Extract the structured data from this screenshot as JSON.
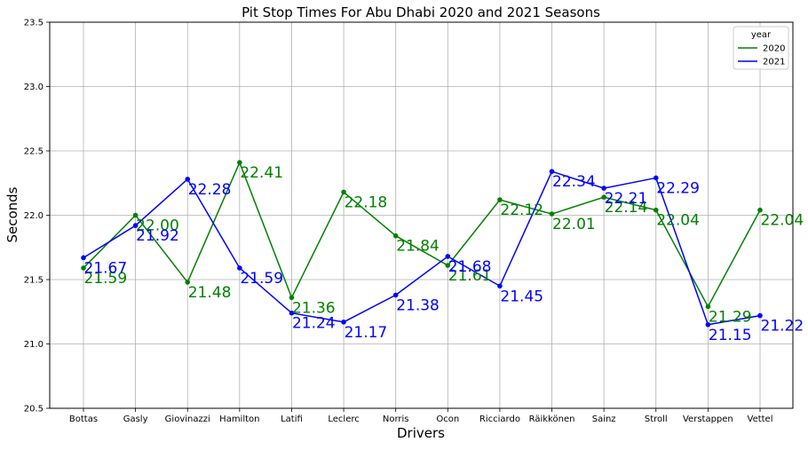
{
  "chart_data": {
    "type": "line",
    "title": "Pit Stop Times For Abu Dhabi 2020 and 2021 Seasons",
    "xlabel": "Drivers",
    "ylabel": "Seconds",
    "categories": [
      "Bottas",
      "Gasly",
      "Giovinazzi",
      "Hamilton",
      "Latifi",
      "Leclerc",
      "Norris",
      "Ocon",
      "Ricciardo",
      "Räikkönen",
      "Sainz",
      "Stroll",
      "Verstappen",
      "Vettel"
    ],
    "ylim": [
      20.5,
      23.5
    ],
    "yticks": [
      "20.5",
      "21.0",
      "21.5",
      "22.0",
      "22.5",
      "23.0",
      "23.5"
    ],
    "grid": true,
    "legend": {
      "title": "year",
      "position": "top-right"
    },
    "series": [
      {
        "name": "2020",
        "color": "#008000",
        "values": [
          21.59,
          22.0,
          21.48,
          22.41,
          21.36,
          22.18,
          21.84,
          21.61,
          22.12,
          22.01,
          22.14,
          22.04,
          21.29,
          22.04
        ],
        "labels": [
          "21.59",
          "22.00",
          "21.48",
          "22.41",
          "21.36",
          "22.18",
          "21.84",
          "21.61",
          "22.12",
          "22.01",
          "22.14",
          "22.04",
          "21.29",
          "22.04"
        ]
      },
      {
        "name": "2021",
        "color": "#0000ff",
        "values": [
          21.67,
          21.92,
          22.28,
          21.59,
          21.24,
          21.17,
          21.38,
          21.68,
          21.45,
          22.34,
          22.21,
          22.29,
          21.15,
          21.22
        ],
        "labels": [
          "21.67",
          "21.92",
          "22.28",
          "21.59",
          "21.24",
          "21.17",
          "21.38",
          "21.68",
          "21.45",
          "22.34",
          "22.21",
          "22.29",
          "21.15",
          "21.22"
        ]
      }
    ]
  }
}
